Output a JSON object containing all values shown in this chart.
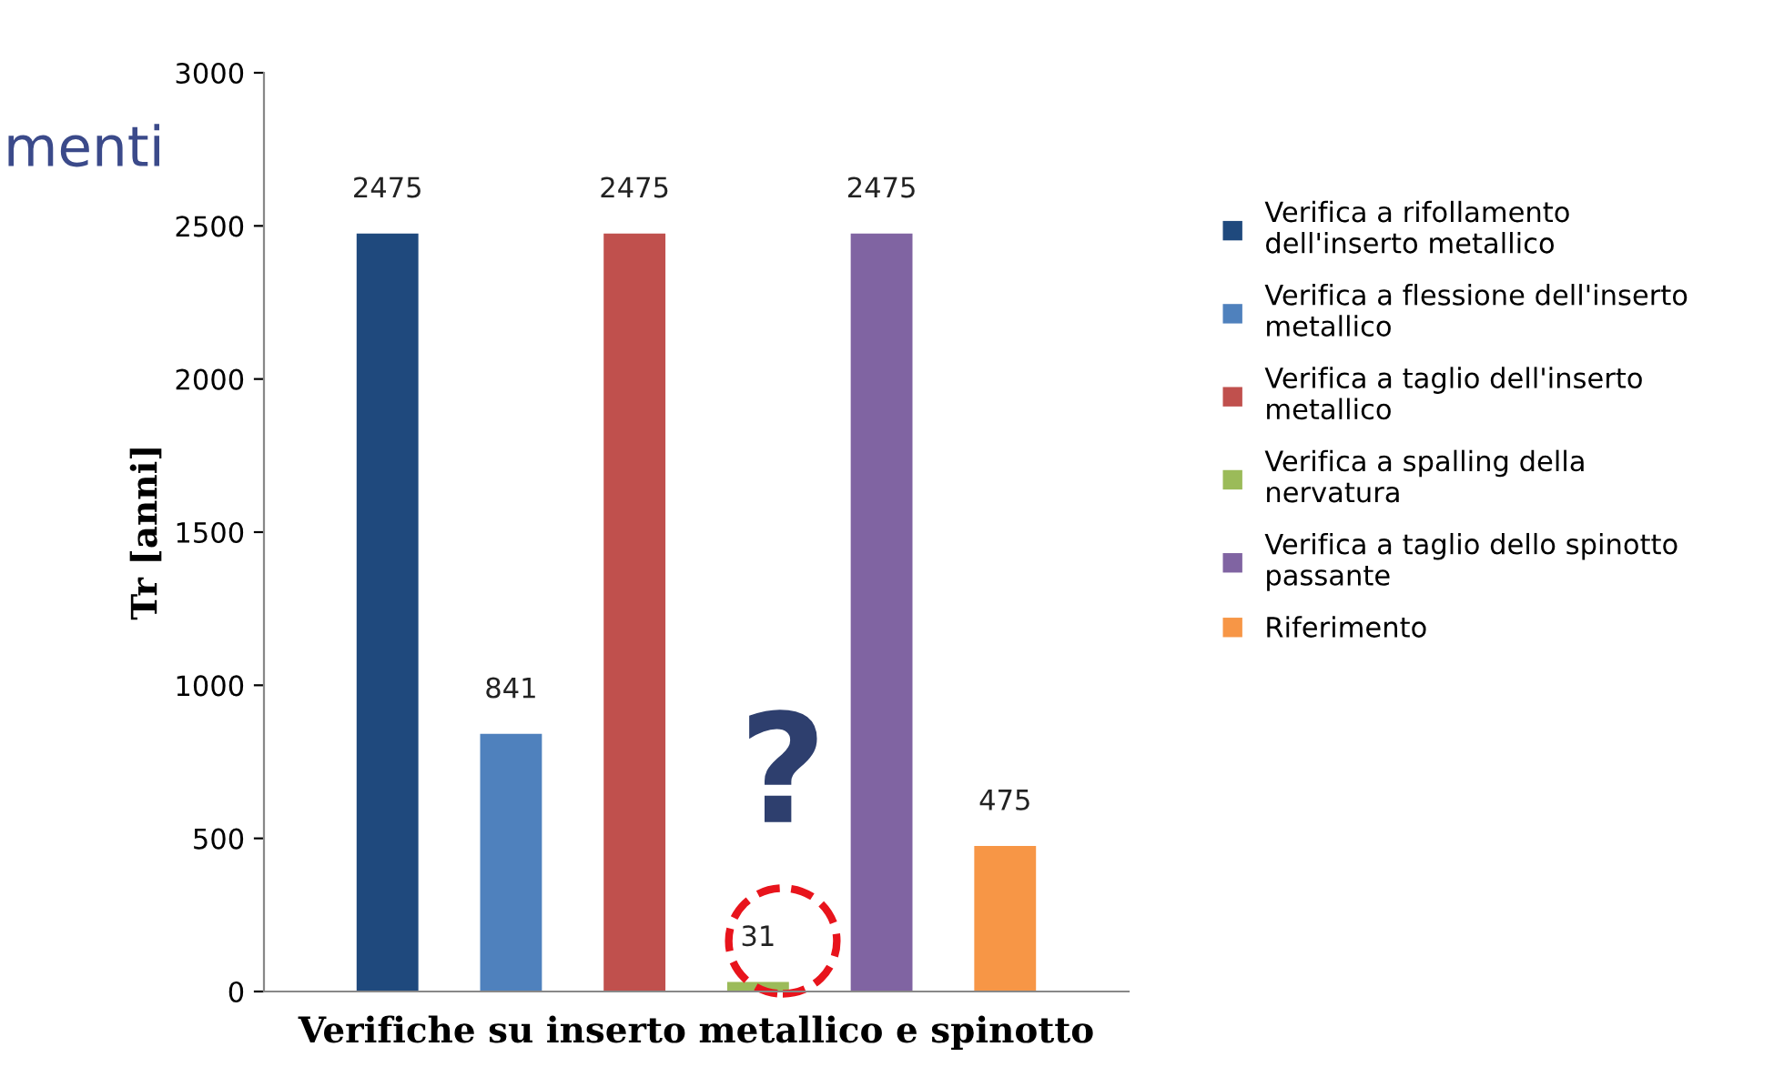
{
  "chart_data": {
    "type": "bar",
    "xlabel": "Verifiche su inserto metallico e spinotto",
    "ylabel": "Tr [anni]",
    "categories": [
      null
    ],
    "series": [
      {
        "name": "Verifica a rifollamento\ndell'inserto metallico",
        "color": "#1f497d",
        "values": [
          2475
        ]
      },
      {
        "name": "Verifica a flessione dell'inserto\nmetallico",
        "color": "#4f81bd",
        "values": [
          841
        ]
      },
      {
        "name": "Verifica a taglio dell'inserto\nmetallico",
        "color": "#c0504d",
        "values": [
          2475
        ]
      },
      {
        "name": "Verifica a spalling della\nnervatura",
        "color": "#9bbb59",
        "values": [
          31
        ]
      },
      {
        "name": "Verifica a taglio dello spinotto\npassante",
        "color": "#8064a2",
        "values": [
          2475
        ]
      },
      {
        "name": "Riferimento",
        "color": "#f79646",
        "values": [
          475
        ]
      }
    ],
    "ylim": [
      0,
      3000
    ],
    "yticks": [
      0,
      500,
      1000,
      1500,
      2000,
      2500,
      3000
    ],
    "data_labels": true,
    "legend": "right",
    "grid": false,
    "annotations": [
      "?",
      "menti"
    ]
  }
}
